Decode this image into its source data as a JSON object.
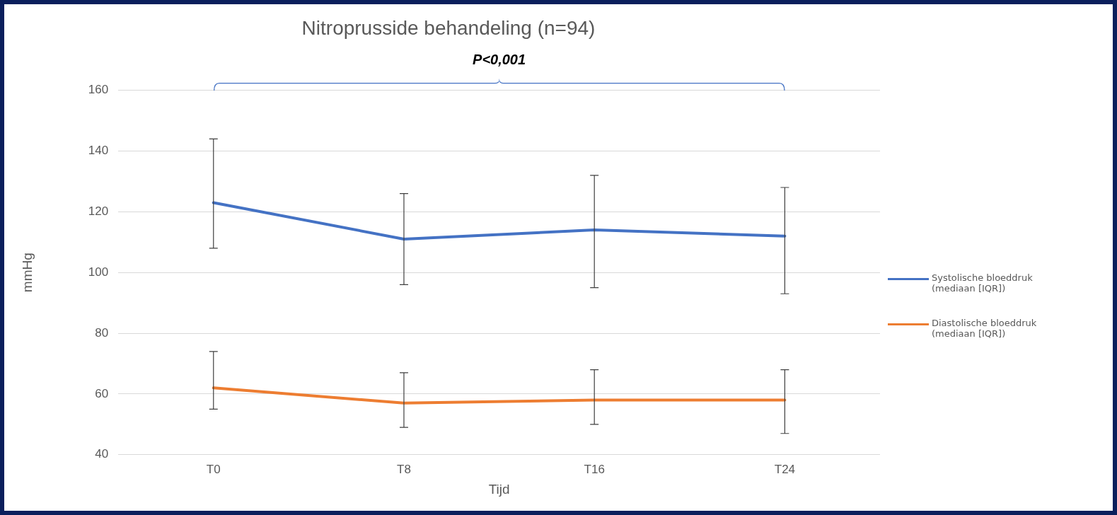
{
  "chart_data": {
    "type": "line",
    "title": "Nitroprusside behandeling (n=94)",
    "xlabel": "Tijd",
    "ylabel": "mmHg",
    "categories": [
      "T0",
      "T8",
      "T16",
      "T24"
    ],
    "series": [
      {
        "name": "Systolische bloeddruk (mediaan [IQR])",
        "color": "#4472c4",
        "values": [
          123,
          111,
          114,
          112
        ],
        "errors": [
          [
            108,
            144
          ],
          [
            96,
            126
          ],
          [
            95,
            132
          ],
          [
            93,
            128
          ]
        ]
      },
      {
        "name": "Diastolische bloeddruk (mediaan [IQR])",
        "color": "#ed7d31",
        "values": [
          62,
          57,
          58,
          58
        ],
        "errors": [
          [
            55,
            74
          ],
          [
            49,
            67
          ],
          [
            50,
            68
          ],
          [
            47,
            68
          ]
        ]
      }
    ],
    "ylim": [
      40,
      160
    ],
    "yticks": [
      40,
      60,
      80,
      100,
      120,
      140,
      160
    ],
    "grid": "y",
    "legend": "right",
    "marker": "none",
    "annotations": [
      "P<0,001"
    ]
  }
}
